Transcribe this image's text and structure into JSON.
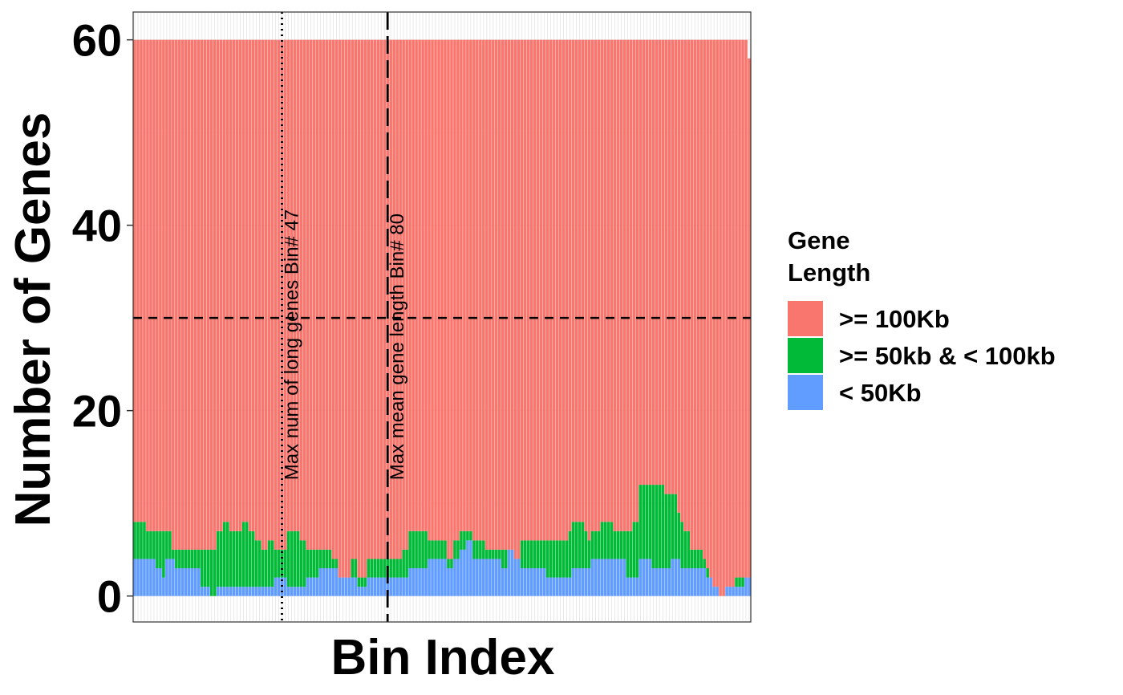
{
  "chart_data": {
    "type": "bar",
    "stacked": true,
    "title": "",
    "xlabel": "Bin Index",
    "ylabel": "Number of Genes",
    "ylim": [
      -2.8,
      63
    ],
    "yticks": [
      0,
      20,
      40,
      60
    ],
    "ytick_labels": [
      "0",
      "20",
      "40",
      "60"
    ],
    "n_bins": 193,
    "legend": {
      "title_lines": [
        "Gene",
        "Length"
      ],
      "position": "right",
      "entries": [
        {
          "label": ">= 100Kb",
          "color": "#F8766D"
        },
        {
          "label": ">= 50kb & < 100kb",
          "color": "#00BA38"
        },
        {
          "label": "< 50Kb",
          "color": "#619CFF"
        }
      ]
    },
    "series_order": [
      "< 50Kb",
      ">= 50kb & < 100kb",
      ">= 100Kb"
    ],
    "short_lt50kb": [
      4,
      4,
      4,
      4,
      4,
      4,
      4,
      3,
      3,
      2,
      4,
      4,
      4,
      3,
      3,
      3,
      3,
      3,
      3,
      3,
      3,
      1,
      1,
      1,
      0,
      0,
      1,
      1,
      1,
      1,
      1,
      1,
      1,
      1,
      1,
      1,
      1,
      1,
      1,
      1,
      1,
      1,
      1,
      1,
      2,
      2,
      2,
      2,
      1,
      1,
      1,
      1,
      1,
      1,
      2,
      2,
      2,
      2,
      3,
      3,
      3,
      3,
      3,
      3,
      2,
      2,
      2,
      2,
      2,
      2,
      1,
      1,
      1,
      2,
      2,
      2,
      2,
      2,
      2,
      2,
      2,
      2,
      2,
      2,
      2,
      2,
      3,
      3,
      3,
      3,
      3,
      3,
      4,
      4,
      4,
      4,
      4,
      4,
      3,
      3,
      4,
      4,
      5,
      5,
      6,
      6,
      4,
      4,
      4,
      4,
      4,
      4,
      4,
      4,
      4,
      3,
      3,
      5,
      5,
      4,
      4,
      3,
      3,
      3,
      3,
      3,
      3,
      3,
      3,
      2,
      2,
      2,
      2,
      2,
      2,
      2,
      2,
      3,
      3,
      3,
      3,
      3,
      3,
      4,
      4,
      4,
      4,
      4,
      4,
      4,
      4,
      4,
      4,
      4,
      2,
      2,
      2,
      2,
      4,
      4,
      4,
      4,
      3,
      3,
      3,
      3,
      3,
      3,
      4,
      4,
      4,
      3,
      3,
      3,
      3,
      3,
      3,
      3,
      3,
      2,
      2,
      1,
      1,
      0,
      0,
      1,
      1,
      1,
      1,
      1,
      1,
      2,
      2
    ],
    "medium_50to100kb": [
      4,
      4,
      4,
      4,
      3,
      3,
      3,
      4,
      4,
      5,
      3,
      3,
      1,
      2,
      2,
      2,
      2,
      2,
      2,
      2,
      2,
      4,
      4,
      4,
      5,
      5,
      6,
      6,
      7,
      7,
      6,
      6,
      6,
      6,
      7,
      7,
      6,
      6,
      5,
      5,
      4,
      4,
      5,
      5,
      3,
      3,
      3,
      3,
      6,
      6,
      6,
      6,
      5,
      5,
      3,
      3,
      3,
      3,
      2,
      2,
      2,
      2,
      1,
      1,
      0,
      0,
      0,
      0,
      2,
      2,
      1,
      1,
      1,
      2,
      2,
      2,
      2,
      2,
      2,
      2,
      2,
      2,
      2,
      2,
      3,
      3,
      4,
      4,
      4,
      4,
      4,
      4,
      2,
      2,
      2,
      2,
      2,
      2,
      1,
      1,
      2,
      2,
      2,
      2,
      1,
      1,
      2,
      2,
      2,
      2,
      1,
      1,
      1,
      1,
      1,
      2,
      2,
      0,
      0,
      0,
      0,
      3,
      3,
      3,
      3,
      3,
      3,
      3,
      3,
      4,
      4,
      4,
      4,
      4,
      4,
      4,
      5,
      5,
      5,
      5,
      5,
      4,
      3,
      3,
      3,
      3,
      4,
      4,
      4,
      4,
      3,
      3,
      3,
      3,
      5,
      5,
      6,
      6,
      8,
      8,
      8,
      8,
      9,
      9,
      9,
      9,
      8,
      8,
      7,
      7,
      5,
      5,
      4,
      4,
      2,
      2,
      2,
      2,
      1,
      1,
      0,
      0,
      0,
      0,
      0,
      0,
      0,
      0,
      1,
      1,
      1,
      0,
      0
    ],
    "long_ge100kb_top": 60,
    "last_bin_total": 58,
    "hlines": [
      {
        "y": 30,
        "style": "dashed"
      }
    ],
    "vlines": [
      {
        "bin": 47,
        "style": "dotted",
        "label": "Max num of long genes Bin# 47"
      },
      {
        "bin": 80,
        "style": "longdash",
        "label": "Max mean gene length Bin# 80"
      }
    ],
    "vline_label_y": 12.5,
    "gridlines": true
  }
}
